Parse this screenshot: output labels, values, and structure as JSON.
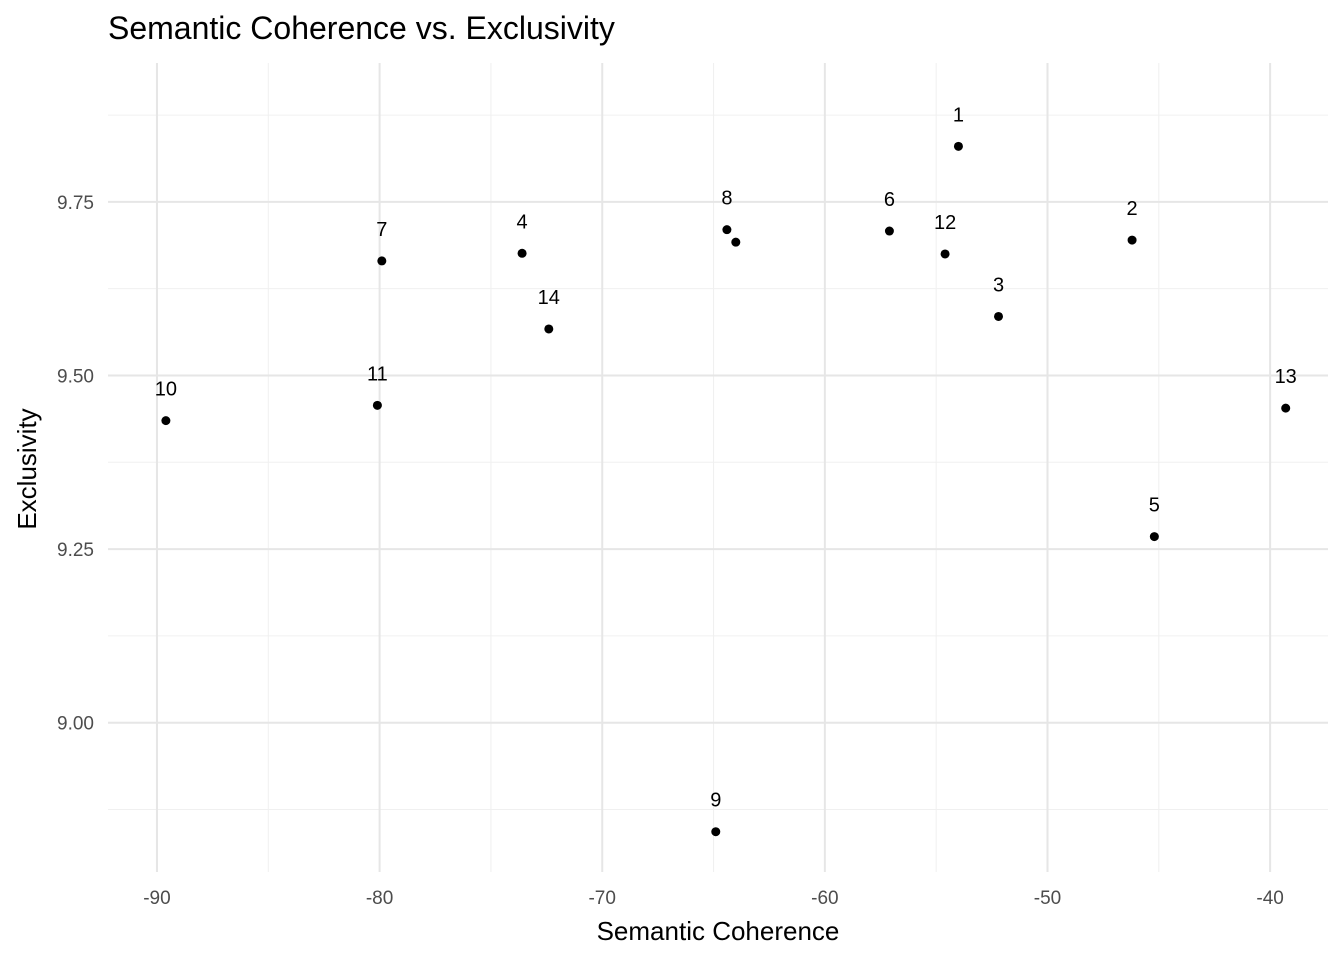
{
  "chart_data": {
    "type": "scatter",
    "title": "Semantic Coherence vs. Exclusivity",
    "xlabel": "Semantic Coherence",
    "ylabel": "Exclusivity",
    "xlim": [
      -92.2,
      -37.4
    ],
    "ylim": [
      8.785,
      9.95
    ],
    "x_ticks": [
      -90,
      -80,
      -70,
      -60,
      -50,
      -40
    ],
    "x_tick_labels": [
      "-90",
      "-80",
      "-70",
      "-60",
      "-50",
      "-40"
    ],
    "x_minor_ticks": [
      -85,
      -75,
      -65,
      -55,
      -45
    ],
    "y_ticks": [
      9.0,
      9.25,
      9.5,
      9.75
    ],
    "y_tick_labels": [
      "9.00",
      "9.25",
      "9.50",
      "9.75"
    ],
    "y_minor_ticks": [
      8.875,
      9.125,
      9.375,
      9.625,
      9.875
    ],
    "grid": true,
    "points": [
      {
        "label": "1",
        "x": -54.0,
        "y": 9.83
      },
      {
        "label": "2",
        "x": -46.2,
        "y": 9.695
      },
      {
        "label": "3",
        "x": -52.2,
        "y": 9.585
      },
      {
        "label": "4",
        "x": -73.6,
        "y": 9.676
      },
      {
        "label": "5",
        "x": -45.2,
        "y": 9.268
      },
      {
        "label": "6",
        "x": -57.1,
        "y": 9.708
      },
      {
        "label": "7",
        "x": -79.9,
        "y": 9.665
      },
      {
        "label": "8",
        "x": -64.4,
        "y": 9.71
      },
      {
        "label": "",
        "x": -64.0,
        "y": 9.692
      },
      {
        "label": "9",
        "x": -64.9,
        "y": 8.843
      },
      {
        "label": "10",
        "x": -89.6,
        "y": 9.435
      },
      {
        "label": "11",
        "x": -80.1,
        "y": 9.457
      },
      {
        "label": "12",
        "x": -54.6,
        "y": 9.675
      },
      {
        "label": "13",
        "x": -39.3,
        "y": 9.453
      },
      {
        "label": "14",
        "x": -72.4,
        "y": 9.567
      }
    ]
  }
}
